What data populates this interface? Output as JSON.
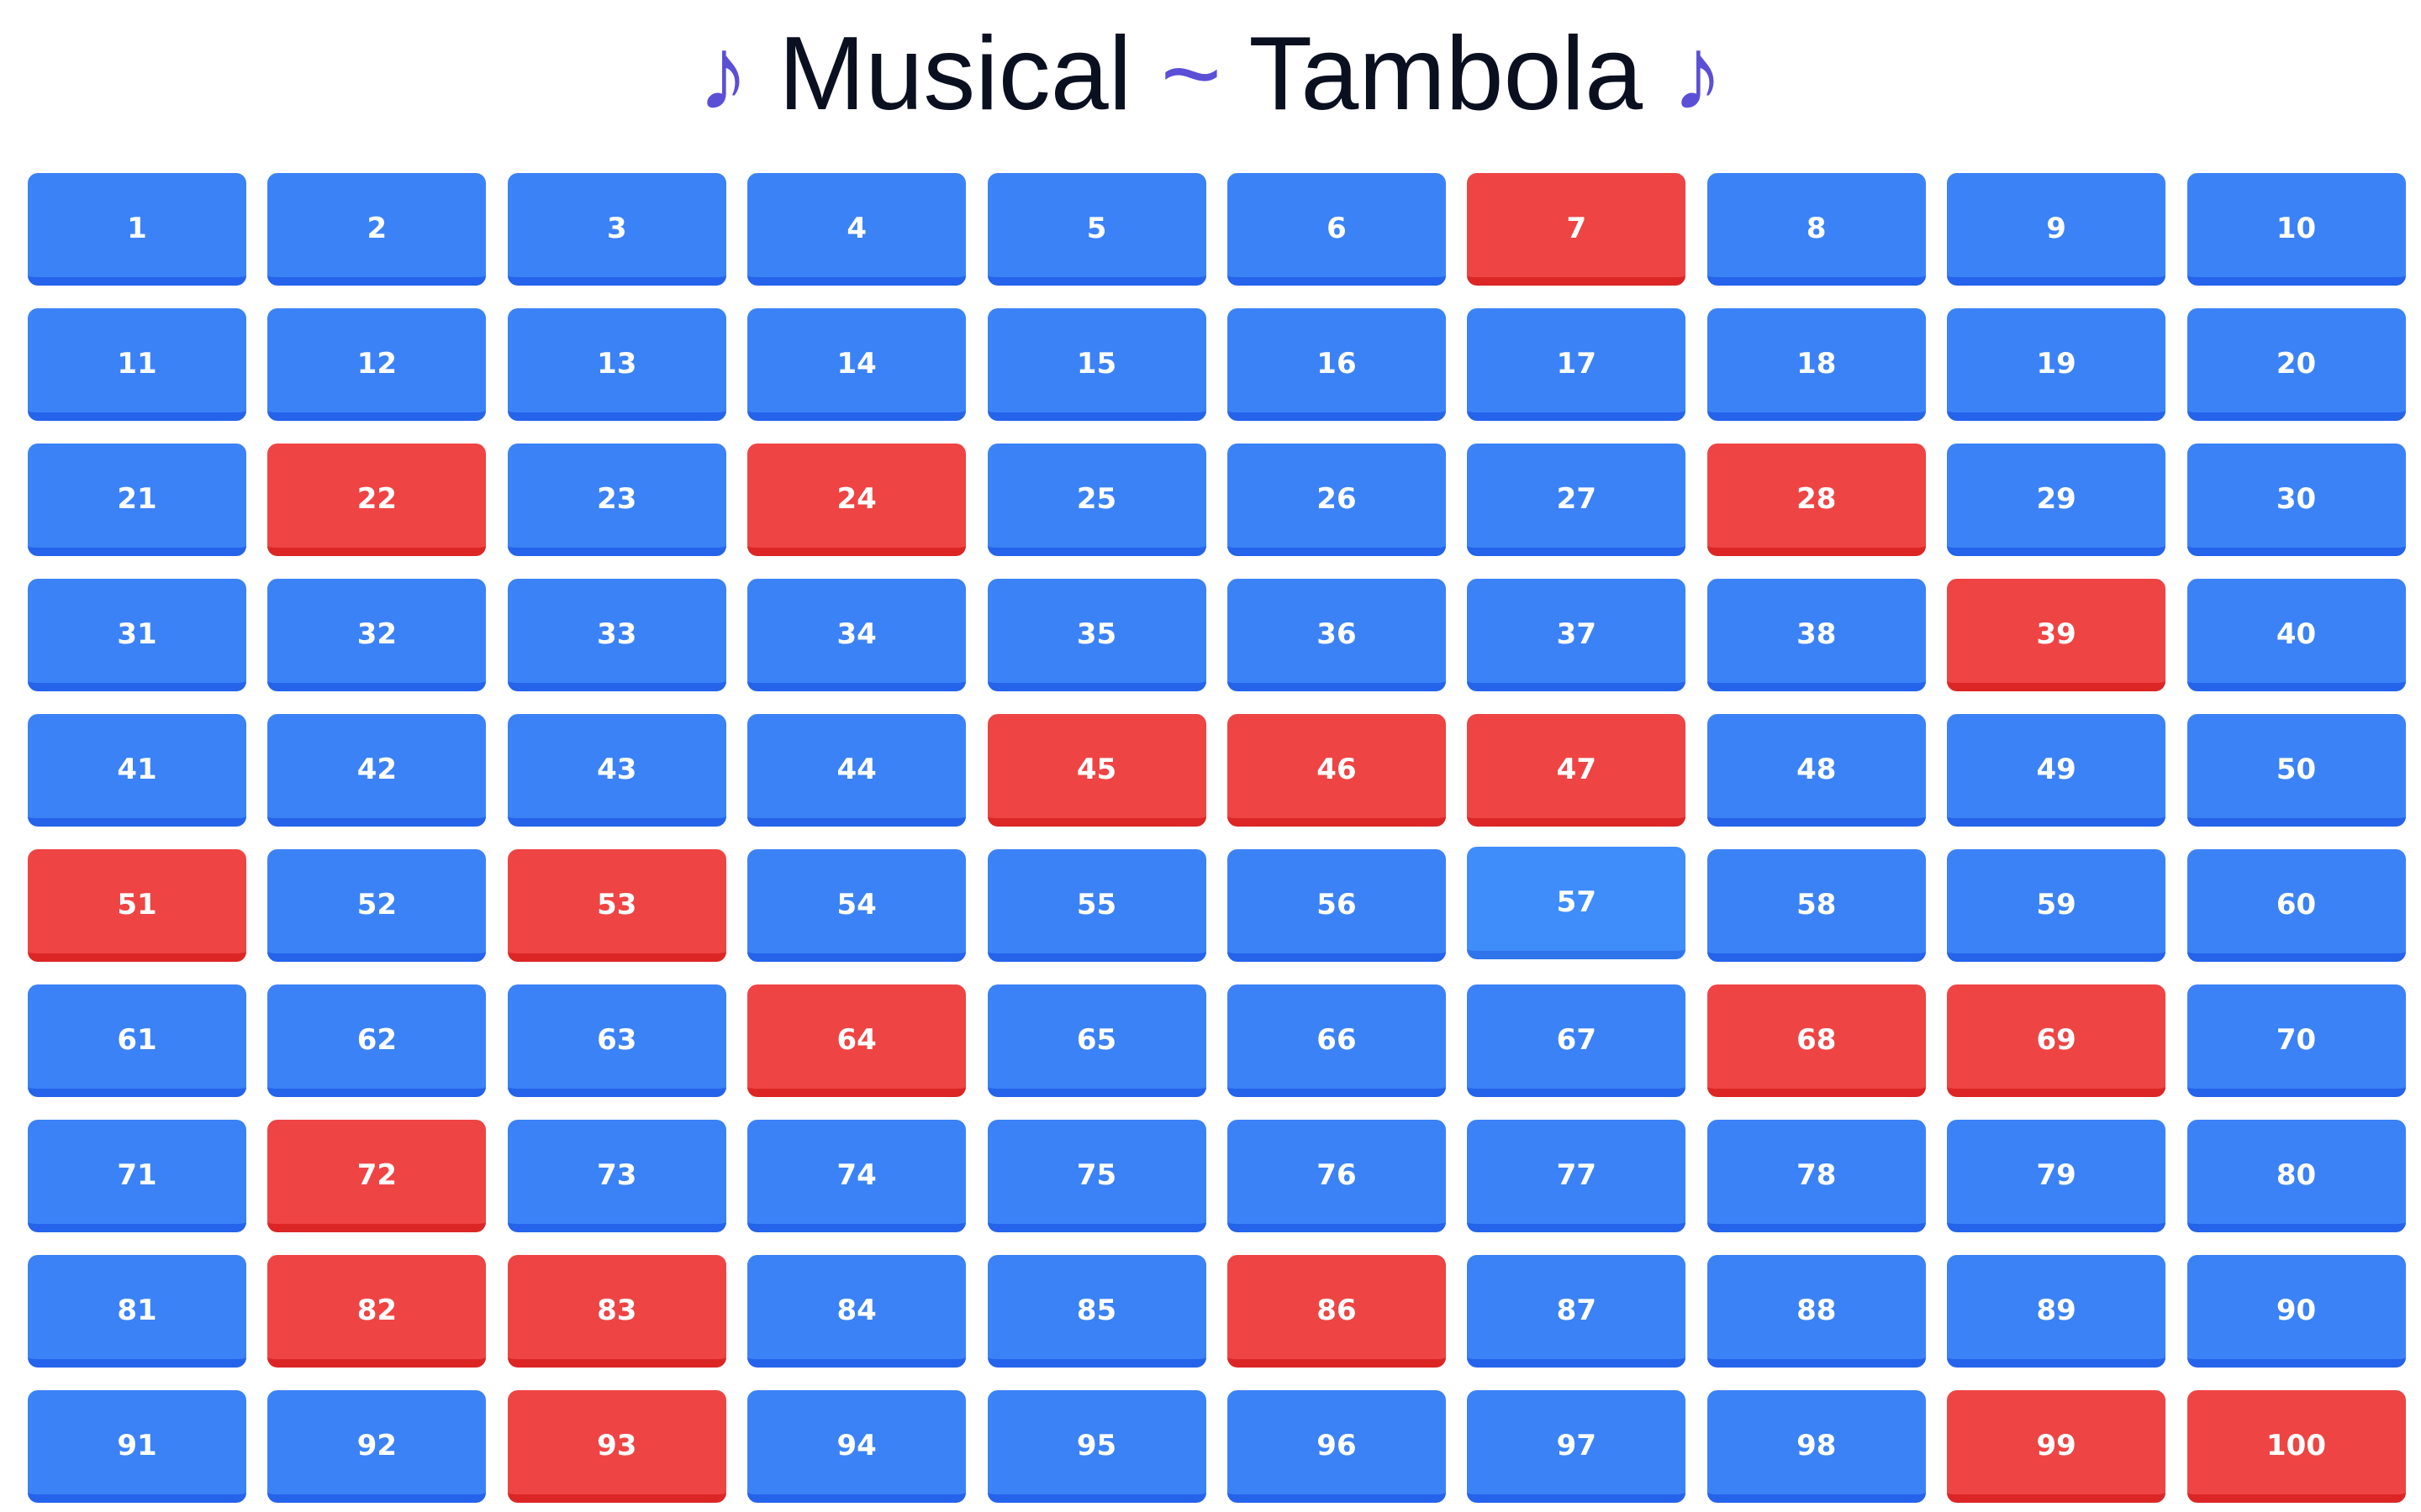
{
  "title": {
    "note_left": "♪",
    "word1": "Musical",
    "tilde": "~",
    "word2": "Tambola",
    "note_right": "♪"
  },
  "board": {
    "numbers": [
      1,
      2,
      3,
      4,
      5,
      6,
      7,
      8,
      9,
      10,
      11,
      12,
      13,
      14,
      15,
      16,
      17,
      18,
      19,
      20,
      21,
      22,
      23,
      24,
      25,
      26,
      27,
      28,
      29,
      30,
      31,
      32,
      33,
      34,
      35,
      36,
      37,
      38,
      39,
      40,
      41,
      42,
      43,
      44,
      45,
      46,
      47,
      48,
      49,
      50,
      51,
      52,
      53,
      54,
      55,
      56,
      57,
      58,
      59,
      60,
      61,
      62,
      63,
      64,
      65,
      66,
      67,
      68,
      69,
      70,
      71,
      72,
      73,
      74,
      75,
      76,
      77,
      78,
      79,
      80,
      81,
      82,
      83,
      84,
      85,
      86,
      87,
      88,
      89,
      90,
      91,
      92,
      93,
      94,
      95,
      96,
      97,
      98,
      99,
      100
    ],
    "marked": [
      7,
      22,
      24,
      28,
      39,
      45,
      46,
      47,
      51,
      53,
      64,
      68,
      69,
      72,
      82,
      83,
      86,
      93,
      99,
      100
    ],
    "hovered": 57
  },
  "colors": {
    "cell_default": "#3b82f6",
    "cell_marked": "#ef4444",
    "cell_hovered": "#3f8cfb",
    "title_accent": "#5b4fd6",
    "title_text": "#0b1020"
  }
}
